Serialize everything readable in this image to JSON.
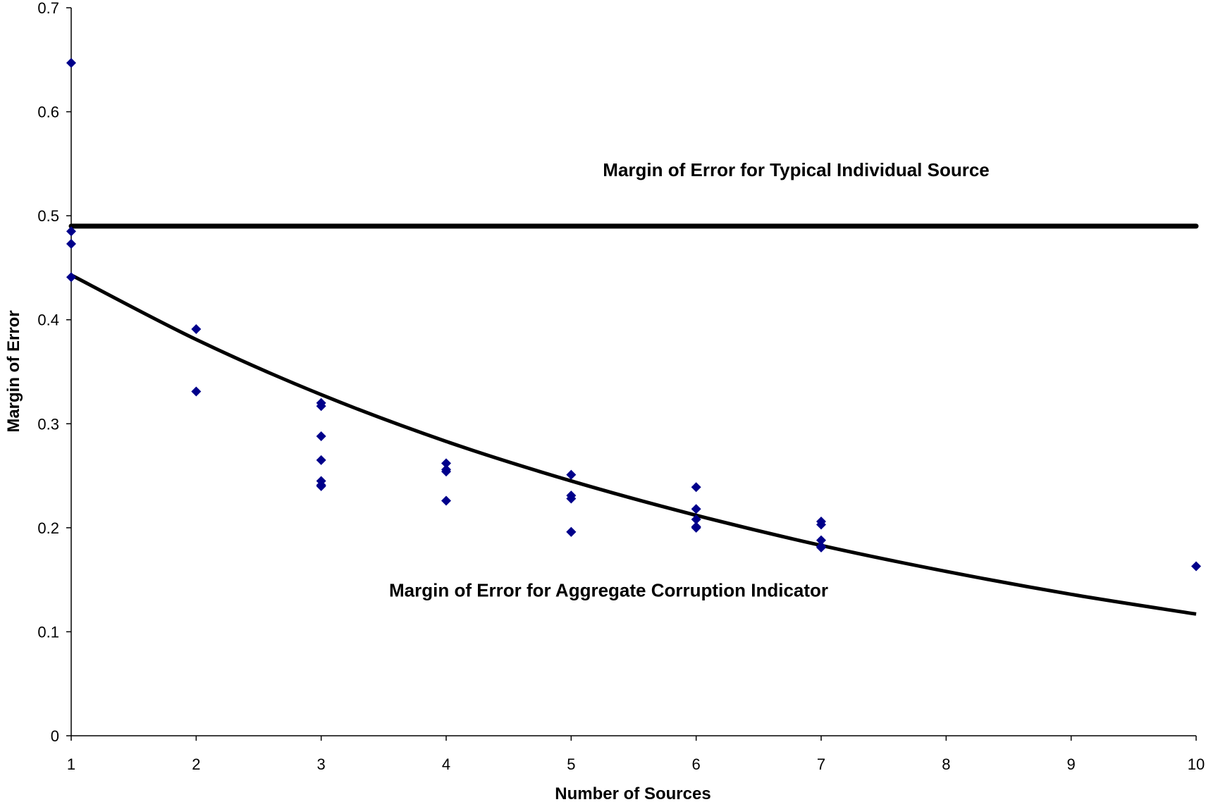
{
  "chart_data": {
    "type": "scatter",
    "title": "",
    "xlabel": "Number of Sources",
    "ylabel": "Margin of Error",
    "xlim": [
      1,
      10
    ],
    "ylim": [
      0,
      0.7
    ],
    "xticks": [
      "1",
      "2",
      "3",
      "4",
      "5",
      "6",
      "7",
      "8",
      "9",
      "10"
    ],
    "yticks": [
      "0",
      "0.1",
      "0.2",
      "0.3",
      "0.4",
      "0.5",
      "0.6",
      "0.7"
    ],
    "grid": false,
    "legend": "none",
    "marker_color": "#00008B",
    "line_color": "#000000",
    "series": [
      {
        "type": "scatter",
        "x": [
          1,
          1,
          1,
          1,
          2,
          2,
          3,
          3,
          3,
          3,
          3,
          3,
          3,
          4,
          4,
          4,
          4,
          5,
          5,
          5,
          5,
          5,
          6,
          6,
          6,
          6,
          6,
          7,
          7,
          7,
          7,
          7,
          10
        ],
        "y": [
          0.647,
          0.485,
          0.473,
          0.441,
          0.391,
          0.331,
          0.32,
          0.317,
          0.288,
          0.265,
          0.245,
          0.241,
          0.24,
          0.262,
          0.256,
          0.254,
          0.226,
          0.251,
          0.231,
          0.228,
          0.196,
          0.196,
          0.239,
          0.218,
          0.208,
          0.201,
          0.2,
          0.206,
          0.203,
          0.188,
          0.182,
          0.181,
          0.163
        ]
      },
      {
        "type": "line",
        "x": [
          1,
          10
        ],
        "y": [
          0.49,
          0.49
        ]
      },
      {
        "type": "line",
        "x": [
          1,
          2,
          3,
          4,
          5,
          6,
          7,
          8,
          9,
          10
        ],
        "y": [
          0.443,
          0.381,
          0.328,
          0.283,
          0.245,
          0.212,
          0.183,
          0.158,
          0.136,
          0.117
        ]
      }
    ],
    "annotations": [
      {
        "text": "Margin of Error for Typical Individual Source",
        "x": 6.8,
        "y": 0.538
      },
      {
        "text": "Margin of Error for Aggregate Corruption Indicator",
        "x": 5.3,
        "y": 0.134
      }
    ]
  }
}
